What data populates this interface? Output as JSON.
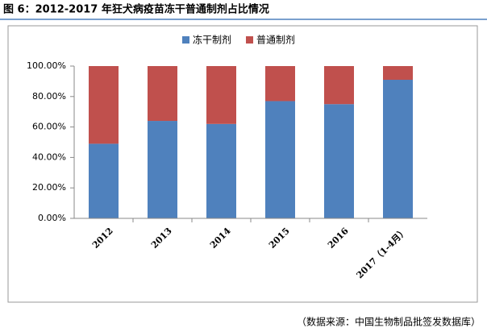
{
  "chart_data": {
    "type": "stacked_bar",
    "title": "图 6：2012-2017 年狂犬病疫苗冻干普通制剂占比情况",
    "source": "（数据来源：中国生物制品批签发数据库）",
    "categories": [
      "2012",
      "2013",
      "2014",
      "2015",
      "2016",
      "2017（1-4月）"
    ],
    "series": [
      {
        "name": "冻干制剂",
        "color": "#4f81bd",
        "values": [
          49,
          64,
          62,
          77,
          75,
          91
        ]
      },
      {
        "name": "普通制剂",
        "color": "#c0504d",
        "values": [
          51,
          36,
          38,
          23,
          25,
          9
        ]
      }
    ],
    "ylim": [
      0,
      100
    ],
    "yticks": [
      {
        "value": 0,
        "label": "0.00%"
      },
      {
        "value": 20,
        "label": "20.00%"
      },
      {
        "value": 40,
        "label": "40.00%"
      },
      {
        "value": 60,
        "label": "60.00%"
      },
      {
        "value": 80,
        "label": "80.00%"
      },
      {
        "value": 100,
        "label": "100.00%"
      }
    ],
    "grid": false,
    "legend": "top"
  }
}
